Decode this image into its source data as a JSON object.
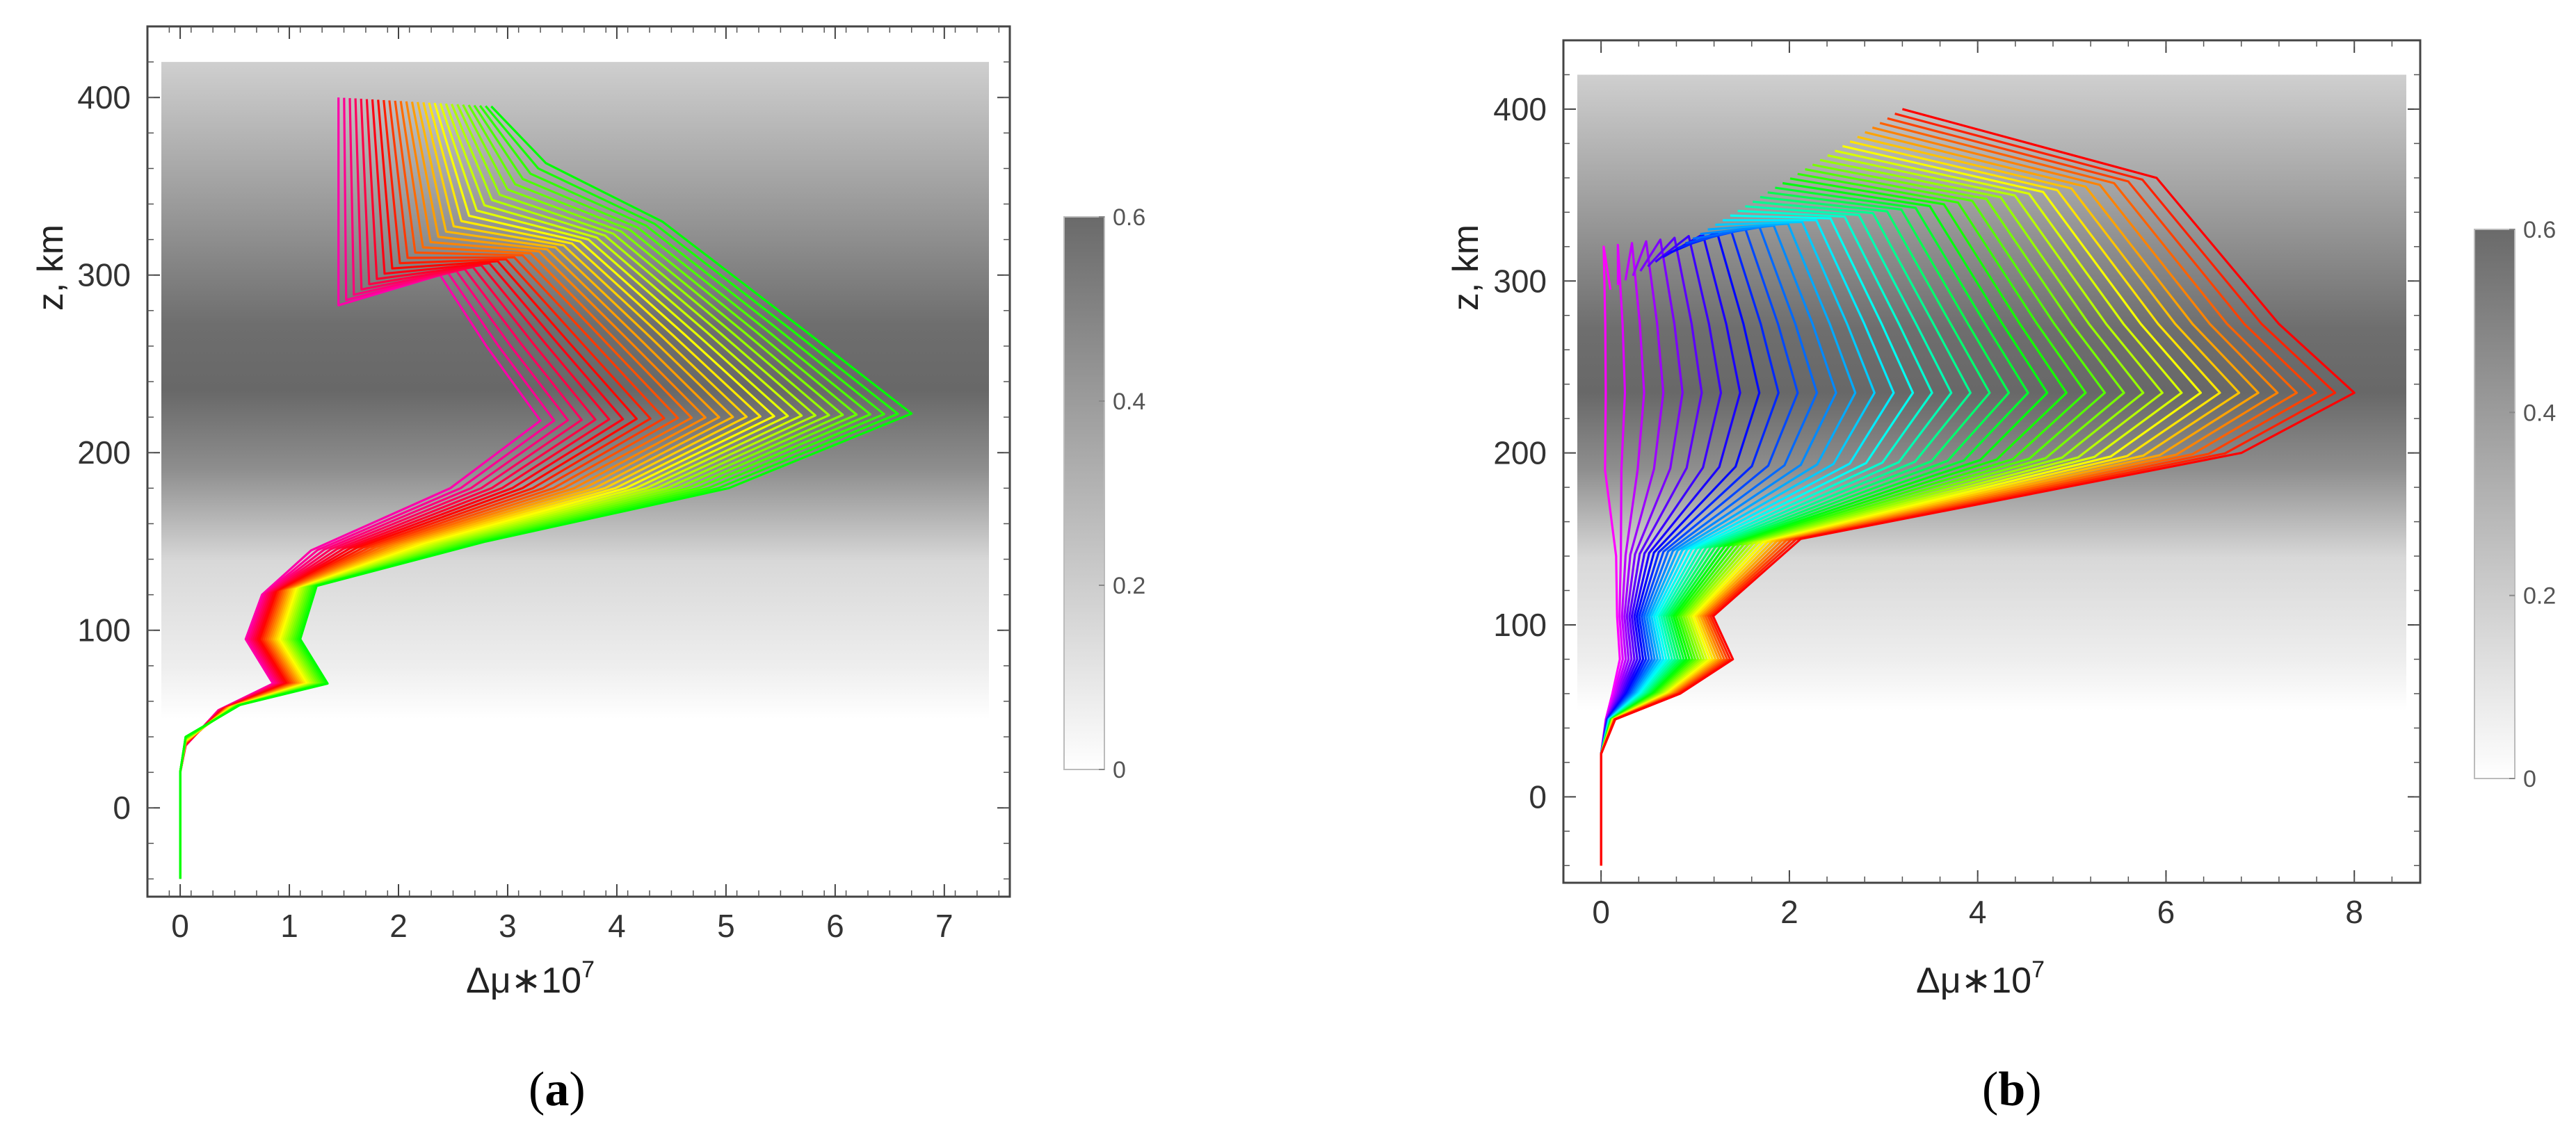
{
  "chart_data": [
    {
      "type": "line",
      "panel_label": "a",
      "xlabel": "Δμ∗10",
      "xlabel_exponent": "7",
      "ylabel": "z, km",
      "xlim": [
        -0.3,
        7.6
      ],
      "ylim": [
        -50,
        440
      ],
      "xticks": [
        "0",
        "1",
        "2",
        "3",
        "4",
        "5",
        "6",
        "7"
      ],
      "yticks": [
        "0",
        "100",
        "200",
        "300",
        "400"
      ],
      "background": {
        "description_values": {
          "z_min": 50,
          "z_max": 420,
          "peak_z": 230
        }
      },
      "colorbar": {
        "min": "0",
        "mid1": "0.2",
        "mid2": "0.4",
        "max": "0.6"
      },
      "series_count": 28,
      "series_color_order": "magenta to green",
      "series": [
        {
          "color": "#ff00aa",
          "peak_dmu": 3.3,
          "top_point": [
            1.45,
            400
          ],
          "kink_point": [
            1.45,
            283
          ]
        },
        {
          "color": "#ff1a40",
          "peak_dmu": 3.7,
          "top_point": [
            1.6,
            400
          ],
          "kink_point": [
            1.8,
            290
          ]
        },
        {
          "color": "#ff6a00",
          "peak_dmu": 4.4,
          "top_point": [
            1.9,
            400
          ],
          "kink_point": [
            2.2,
            305
          ]
        },
        {
          "color": "#ffbf00",
          "peak_dmu": 5.1,
          "top_point": [
            2.2,
            400
          ],
          "kink_point": [
            2.5,
            320
          ]
        },
        {
          "color": "#c8ff00",
          "peak_dmu": 5.9,
          "top_point": [
            2.5,
            398
          ],
          "kink_point": [
            2.8,
            345
          ]
        },
        {
          "color": "#00ff5a",
          "peak_dmu": 6.7,
          "top_point": [
            2.8,
            395
          ],
          "kink_point": [
            3.3,
            365
          ]
        }
      ]
    },
    {
      "type": "line",
      "panel_label": "b",
      "xlabel": "Δμ∗10",
      "xlabel_exponent": "7",
      "ylabel": "z, km",
      "xlim": [
        -0.4,
        8.7
      ],
      "ylim": [
        -50,
        440
      ],
      "xticks": [
        "0",
        "2",
        "4",
        "6",
        "8"
      ],
      "yticks": [
        "0",
        "100",
        "200",
        "300",
        "400"
      ],
      "background": {
        "description_values": {
          "z_min": 50,
          "z_max": 420,
          "peak_z": 230
        }
      },
      "colorbar": {
        "min": "0",
        "mid1": "0.2",
        "mid2": "0.4",
        "max": "0.6"
      },
      "series_count": 40,
      "series_color_order": "magenta to red",
      "series": [
        {
          "color": "#ff00ff",
          "peak_dmu": 0.05,
          "top_z": 295
        },
        {
          "color": "#8000ff",
          "peak_dmu": 1.6,
          "top_z": 320
        },
        {
          "color": "#0000ff",
          "peak_dmu": 3.0,
          "top_z": 345
        },
        {
          "color": "#00ffff",
          "peak_dmu": 5.2,
          "top_z": 370
        },
        {
          "color": "#00ff00",
          "peak_dmu": 6.8,
          "top_z": 385
        },
        {
          "color": "#ffff00",
          "peak_dmu": 7.5,
          "top_z": 390
        },
        {
          "color": "#ff0000",
          "peak_dmu": 8.0,
          "top_z": 400
        }
      ]
    }
  ]
}
